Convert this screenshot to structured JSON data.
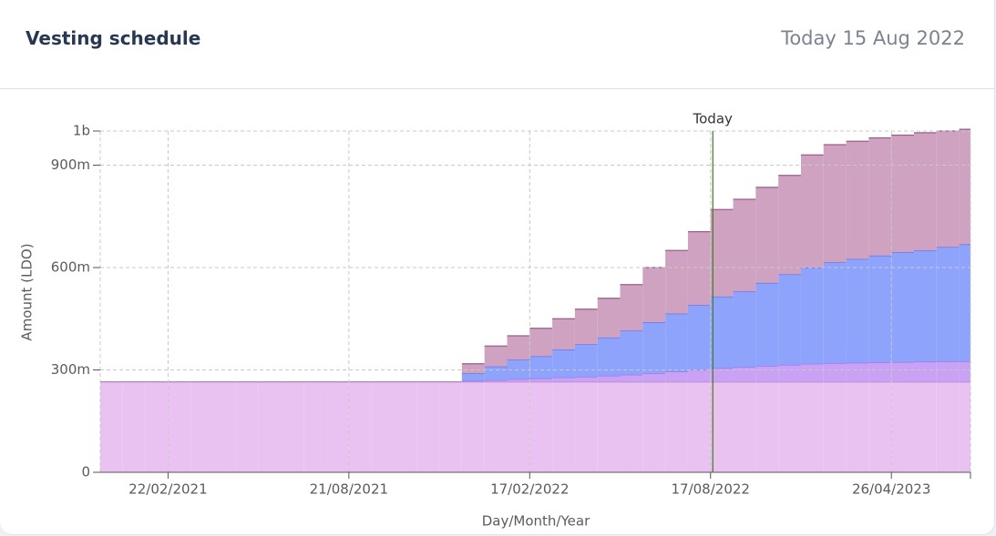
{
  "chart_data": {
    "type": "stacked-step-area",
    "title": "Vesting schedule",
    "subtitle": "Today 15 Aug 2022",
    "x_label": "Day/Month/Year",
    "y_label": "Amount (LDO)",
    "categories": [
      null,
      null,
      null,
      "22/02/2021",
      null,
      null,
      null,
      null,
      null,
      null,
      null,
      "21/08/2021",
      null,
      null,
      null,
      null,
      null,
      null,
      null,
      "17/02/2022",
      null,
      null,
      null,
      null,
      null,
      null,
      null,
      "17/08/2022",
      null,
      null,
      null,
      null,
      null,
      null,
      null,
      "26/04/2023",
      null,
      null,
      null
    ],
    "series": [
      {
        "color": "#eac2f2",
        "values": [
          265,
          265,
          265,
          265,
          265,
          265,
          265,
          265,
          265,
          265,
          265,
          265,
          265,
          265,
          265,
          265,
          265,
          265,
          265,
          265,
          265,
          265,
          265,
          265,
          265,
          265,
          265,
          265,
          265,
          265,
          265,
          265,
          265,
          265,
          265,
          265,
          265,
          265,
          265
        ]
      },
      {
        "color": "#c9a2f6",
        "values": [
          0,
          0,
          0,
          0,
          0,
          0,
          0,
          0,
          0,
          0,
          0,
          0,
          0,
          0,
          0,
          0,
          3,
          5,
          8,
          10,
          13,
          15,
          18,
          21,
          25,
          30,
          35,
          40,
          43,
          47,
          50,
          53,
          55,
          56,
          57,
          58,
          59,
          60,
          60
        ]
      },
      {
        "color": "#8ea3fb",
        "values": [
          0,
          0,
          0,
          0,
          0,
          0,
          0,
          0,
          0,
          0,
          0,
          0,
          0,
          0,
          0,
          0,
          22,
          40,
          57,
          65,
          82,
          95,
          112,
          129,
          150,
          170,
          190,
          210,
          222,
          243,
          265,
          282,
          295,
          304,
          313,
          322,
          326,
          335,
          343
        ]
      },
      {
        "color": "#cfa2c2",
        "values": [
          0,
          0,
          0,
          0,
          0,
          0,
          0,
          0,
          0,
          0,
          0,
          0,
          0,
          0,
          0,
          0,
          28,
          60,
          70,
          82,
          90,
          103,
          115,
          135,
          160,
          185,
          215,
          255,
          270,
          280,
          290,
          330,
          345,
          345,
          345,
          343,
          345,
          340,
          337
        ]
      }
    ],
    "ylim": [
      0,
      1000
    ],
    "yticks": [
      0,
      {
        "value": 300,
        "label": "300m"
      },
      {
        "value": 600,
        "label": "600m"
      },
      {
        "value": 900,
        "label": "900m"
      },
      {
        "value": 1000,
        "label": "1b"
      }
    ],
    "grid": true,
    "annotations": [
      {
        "text": "Today",
        "x": 27.1,
        "color": "#3f7a1f"
      }
    ]
  }
}
